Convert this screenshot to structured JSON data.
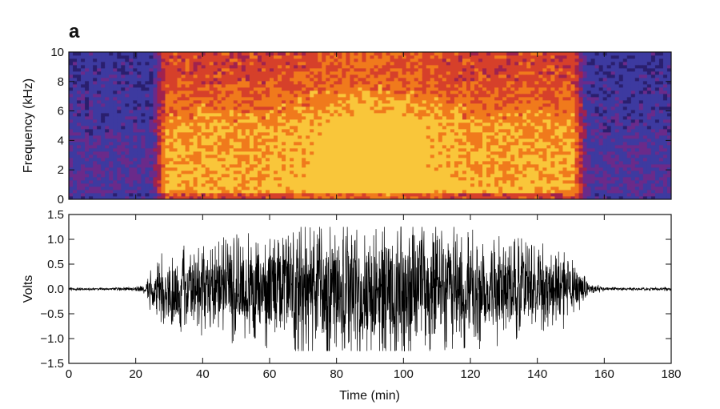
{
  "panel_label": "a",
  "chart_data": [
    {
      "type": "heatmap",
      "name": "spectrogram",
      "xlabel": "",
      "ylabel": "Frequency (kHz)",
      "xlim": [
        0,
        180
      ],
      "ylim": [
        0,
        10
      ],
      "yticks": [
        0,
        2,
        4,
        6,
        8,
        10
      ],
      "description_of_intensity": {
        "quiet_intervals_min": [
          [
            0,
            25
          ],
          [
            155,
            180
          ]
        ],
        "active_interval_min": [
          25,
          155
        ],
        "peak_interval_min": [
          60,
          120
        ],
        "strongest_band_khz": [
          1,
          5
        ]
      },
      "colormap": [
        "#2a1f6e",
        "#3d3aa0",
        "#6a2a8a",
        "#a0224e",
        "#d6402a",
        "#f07a1c",
        "#f9c63a"
      ]
    },
    {
      "type": "line",
      "name": "waveform",
      "xlabel": "Time (min)",
      "ylabel": "Volts",
      "xlim": [
        0,
        180
      ],
      "ylim": [
        -1.5,
        1.5
      ],
      "xticks": [
        0,
        20,
        40,
        60,
        80,
        100,
        120,
        140,
        160,
        180
      ],
      "yticks": [
        -1.5,
        -1.0,
        -0.5,
        0.0,
        0.5,
        1.0,
        1.5
      ],
      "ytick_labels": [
        "−1.5",
        "−1.0",
        "−0.5",
        "0.0",
        "0.5",
        "1.0",
        "1.5"
      ],
      "envelope_time_min": [
        0,
        10,
        20,
        23,
        25,
        30,
        40,
        50,
        60,
        70,
        80,
        90,
        100,
        110,
        120,
        130,
        140,
        148,
        152,
        155,
        160,
        170,
        180
      ],
      "envelope_volts": [
        0.02,
        0.02,
        0.03,
        0.1,
        0.4,
        0.55,
        0.65,
        0.75,
        0.85,
        0.95,
        1.05,
        1.1,
        1.05,
        0.95,
        0.85,
        0.75,
        0.65,
        0.55,
        0.35,
        0.1,
        0.03,
        0.02,
        0.03
      ],
      "clip_volts": [
        -1.25,
        1.25
      ],
      "color": "#000000"
    }
  ]
}
